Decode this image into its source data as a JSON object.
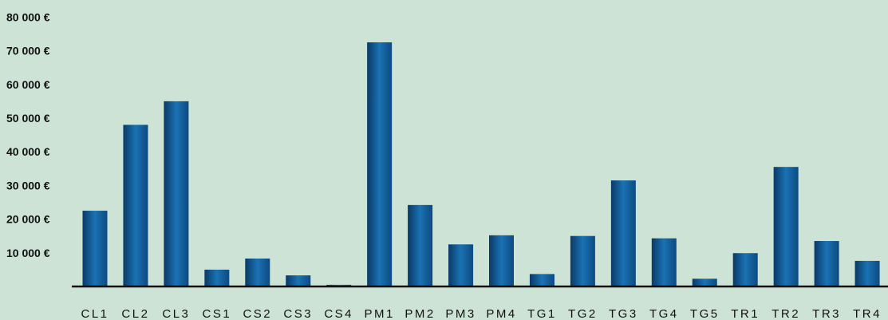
{
  "chart_data": {
    "type": "bar",
    "categories": [
      "CL1",
      "CL2",
      "CL3",
      "CS1",
      "CS2",
      "CS3",
      "CS4",
      "PM1",
      "PM2",
      "PM3",
      "PM4",
      "TG1",
      "TG2",
      "TG3",
      "TG4",
      "TG5",
      "TR1",
      "TR2",
      "TR3",
      "TR4"
    ],
    "values": [
      22500,
      48000,
      55000,
      5000,
      8300,
      3300,
      500,
      72500,
      24200,
      12500,
      15200,
      3700,
      15000,
      31500,
      14300,
      2300,
      9900,
      35500,
      13500,
      7600
    ],
    "yticks": [
      "10 000 €",
      "20 000 €",
      "30 000 €",
      "40 000 €",
      "50 000 €",
      "60 000 €",
      "70 000 €",
      "80 000 €"
    ],
    "ytick_values": [
      10000,
      20000,
      30000,
      40000,
      50000,
      60000,
      70000,
      80000
    ],
    "ylim": [
      0,
      80000
    ],
    "title": "",
    "xlabel": "",
    "ylabel": "",
    "grid": false,
    "legend": "none",
    "colors": {
      "background": "#cde3d6",
      "bar_dark": "#0a3a66",
      "bar_mid": "#1468a8",
      "bar_light": "#2a82c4",
      "axis": "#111111"
    }
  }
}
